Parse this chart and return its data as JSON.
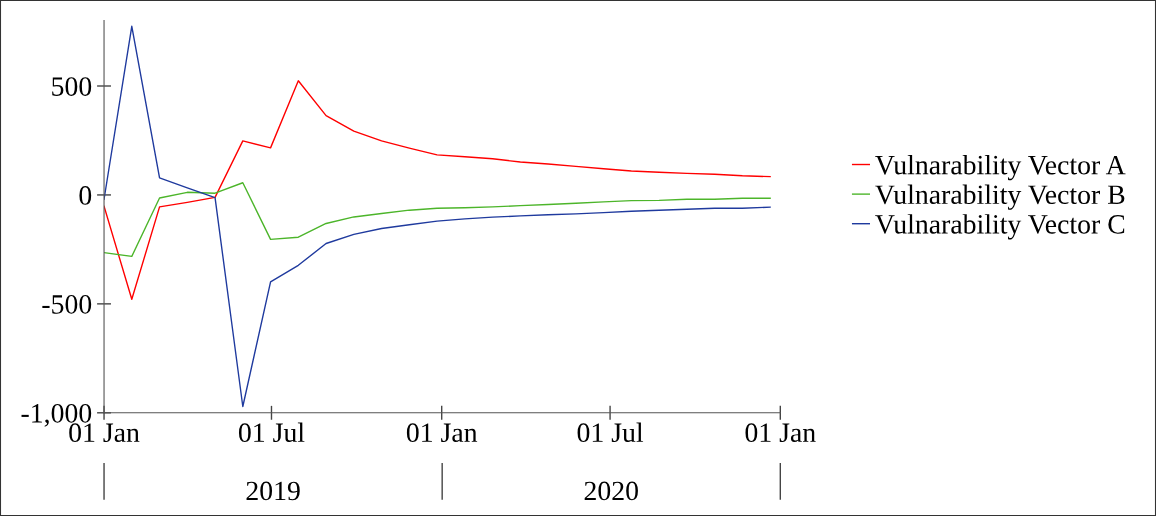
{
  "chart_data": {
    "type": "line",
    "x": [
      "2019-01-01",
      "2019-01-31",
      "2019-03-02",
      "2019-04-01",
      "2019-05-01",
      "2019-05-31",
      "2019-06-30",
      "2019-07-30",
      "2019-08-29",
      "2019-09-28",
      "2019-10-28",
      "2019-11-27",
      "2019-12-27",
      "2020-01-26",
      "2020-02-25",
      "2020-03-26",
      "2020-04-25",
      "2020-05-25",
      "2020-06-24",
      "2020-07-24",
      "2020-08-23",
      "2020-09-22",
      "2020-10-22",
      "2020-11-21",
      "2020-12-21"
    ],
    "series": [
      {
        "name": "Vulnarability Vector A",
        "color": "#ff0000",
        "values": [
          -52,
          -479,
          -55,
          -34,
          -11,
          248,
          216,
          524,
          364,
          293,
          248,
          215,
          184,
          175,
          166,
          151,
          142,
          131,
          120,
          110,
          104,
          99,
          95,
          88,
          84
        ]
      },
      {
        "name": "Vulnarability Vector B",
        "color": "#4cb52a",
        "values": [
          -265,
          -282,
          -14,
          12,
          8,
          56,
          -204,
          -194,
          -131,
          -101,
          -85,
          -70,
          -61,
          -59,
          -55,
          -49,
          -44,
          -38,
          -32,
          -26,
          -25,
          -20,
          -20,
          -15,
          -15
        ]
      },
      {
        "name": "Vulnarability Vector C",
        "color": "#1f3a9e",
        "values": [
          -20,
          774,
          78,
          32,
          -12,
          -971,
          -399,
          -323,
          -223,
          -181,
          -154,
          -137,
          -120,
          -110,
          -102,
          -96,
          -91,
          -87,
          -81,
          -75,
          -70,
          -66,
          -61,
          -61,
          -56
        ]
      }
    ],
    "xlim": [
      "2019-01-01",
      "2021-01-01"
    ],
    "xticks": [
      {
        "value": "2019-01-01",
        "label": "01 Jan"
      },
      {
        "value": "2019-07-01",
        "label": "01 Jul"
      },
      {
        "value": "2020-01-01",
        "label": "01 Jan"
      },
      {
        "value": "2020-07-01",
        "label": "01 Jul"
      },
      {
        "value": "2021-01-01",
        "label": "01 Jan"
      }
    ],
    "ylim": [
      -1000,
      800
    ],
    "yticks": [
      {
        "value": -1000,
        "label": "-1,000"
      },
      -500,
      0,
      500
    ],
    "annotations": [
      "2019",
      "2020"
    ],
    "grid": false,
    "legend": "right",
    "marker": "none",
    "line_style": "solid"
  }
}
